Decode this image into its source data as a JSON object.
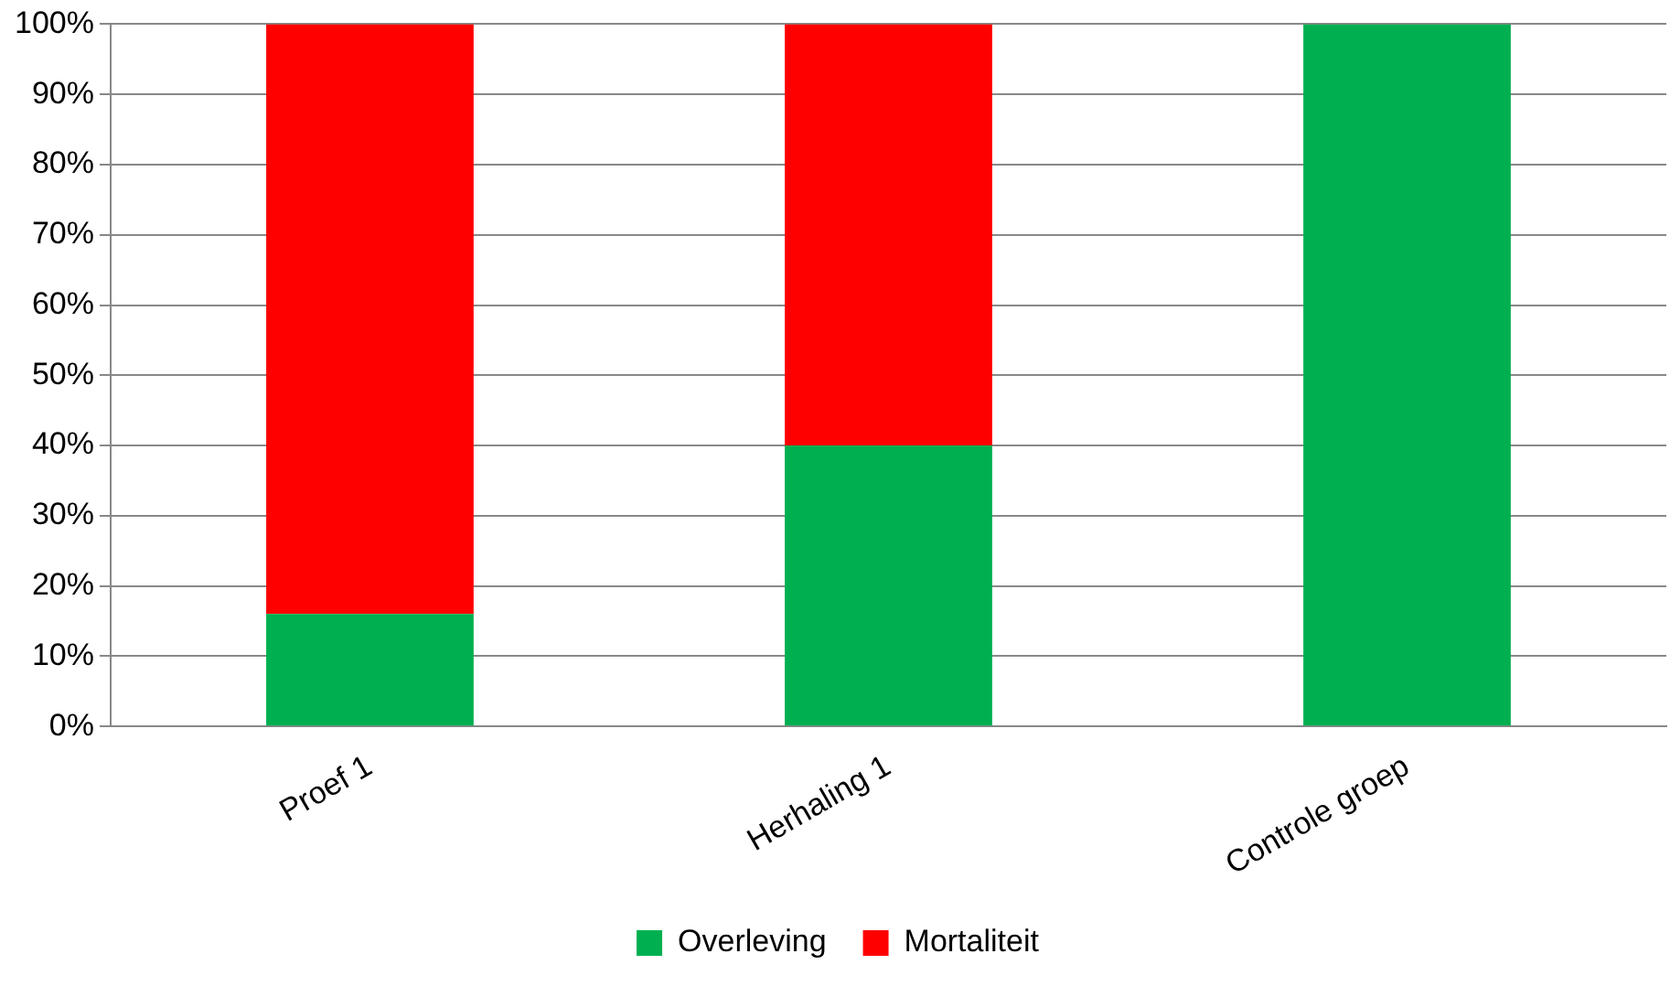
{
  "chart_data": {
    "type": "bar",
    "stacked": true,
    "categories": [
      "Proef 1",
      "Herhaling 1",
      "Controle groep"
    ],
    "series": [
      {
        "name": "Overleving",
        "color": "#00b050",
        "values": [
          16,
          40,
          100
        ]
      },
      {
        "name": "Mortaliteit",
        "color": "#ff0000",
        "values": [
          84,
          60,
          0
        ]
      }
    ],
    "ylim": [
      0,
      100
    ],
    "yticks": [
      {
        "value": 0,
        "label": "0%"
      },
      {
        "value": 10,
        "label": "10%"
      },
      {
        "value": 20,
        "label": "20%"
      },
      {
        "value": 30,
        "label": "30%"
      },
      {
        "value": 40,
        "label": "40%"
      },
      {
        "value": 50,
        "label": "50%"
      },
      {
        "value": 60,
        "label": "60%"
      },
      {
        "value": 70,
        "label": "70%"
      },
      {
        "value": 80,
        "label": "80%"
      },
      {
        "value": 90,
        "label": "90%"
      },
      {
        "value": 100,
        "label": "100%"
      }
    ],
    "grid": "y",
    "legend": "bottom"
  }
}
